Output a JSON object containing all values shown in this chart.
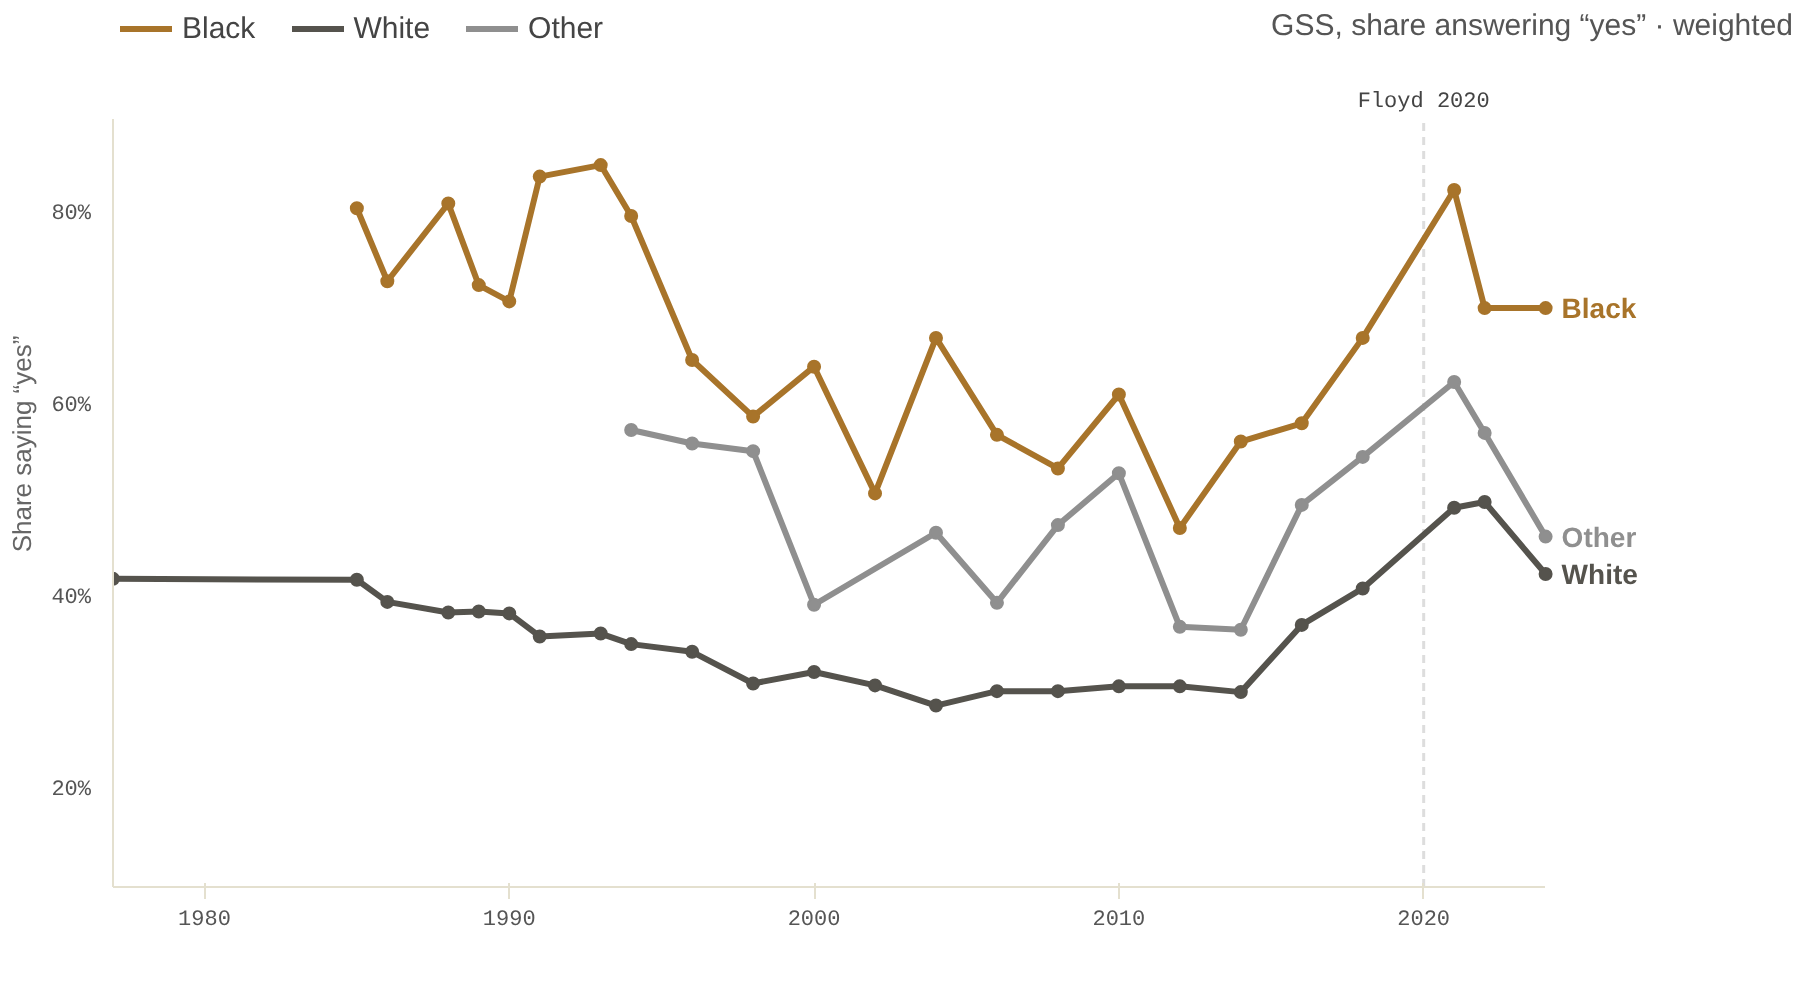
{
  "chart_data": {
    "type": "line",
    "subtitle": "GSS, share answering “yes” · weighted",
    "ylabel": "Share saying “yes”",
    "xlim": [
      1977,
      2024
    ],
    "xticks": [
      1980,
      1990,
      2000,
      2010,
      2020
    ],
    "ylim": [
      10,
      90
    ],
    "yticks": [
      {
        "value": 20,
        "label": "20%"
      },
      {
        "value": 40,
        "label": "40%"
      },
      {
        "value": 60,
        "label": "60%"
      },
      {
        "value": 80,
        "label": "80%"
      }
    ],
    "grid": false,
    "legend": "top left",
    "marker": "circle",
    "line_style": "solid",
    "ref_lines": [
      {
        "axis": "x",
        "value": 2020,
        "label": "Floyd 2020",
        "color": "#dddddd",
        "line_style": "dashed"
      }
    ],
    "series": [
      {
        "name": "Black",
        "color": "#a8742a",
        "x": [
          1985,
          1986,
          1988,
          1989,
          1990,
          1991,
          1993,
          1994,
          1996,
          1998,
          2000,
          2002,
          2004,
          2006,
          2008,
          2010,
          2012,
          2014,
          2016,
          2018,
          2021,
          2022,
          2024
        ],
        "values": [
          80.7,
          73.1,
          81.2,
          72.7,
          71.0,
          84.0,
          85.2,
          79.9,
          64.9,
          59.0,
          64.2,
          51.0,
          67.2,
          57.1,
          53.6,
          61.3,
          47.4,
          56.4,
          58.3,
          67.2,
          82.6,
          70.3,
          70.3
        ]
      },
      {
        "name": "White",
        "color": "#55534d",
        "x": [
          1977,
          1985,
          1986,
          1988,
          1989,
          1990,
          1991,
          1993,
          1994,
          1996,
          1998,
          2000,
          2002,
          2004,
          2006,
          2008,
          2010,
          2012,
          2014,
          2016,
          2018,
          2021,
          2022,
          2024
        ],
        "values": [
          42.1,
          42.0,
          39.7,
          38.6,
          38.7,
          38.5,
          36.1,
          36.4,
          35.3,
          34.5,
          31.2,
          32.4,
          31.0,
          28.9,
          30.4,
          30.4,
          30.9,
          30.9,
          30.3,
          37.3,
          41.1,
          49.5,
          50.1,
          42.6
        ]
      },
      {
        "name": "Other",
        "color": "#8f8f8f",
        "x": [
          1994,
          1996,
          1998,
          2000,
          2004,
          2006,
          2008,
          2010,
          2012,
          2014,
          2016,
          2018,
          2021,
          2022,
          2024
        ],
        "values": [
          57.6,
          56.2,
          55.4,
          39.4,
          46.9,
          39.6,
          47.7,
          53.1,
          37.1,
          36.8,
          49.8,
          54.8,
          62.6,
          57.3,
          46.5
        ]
      }
    ]
  }
}
